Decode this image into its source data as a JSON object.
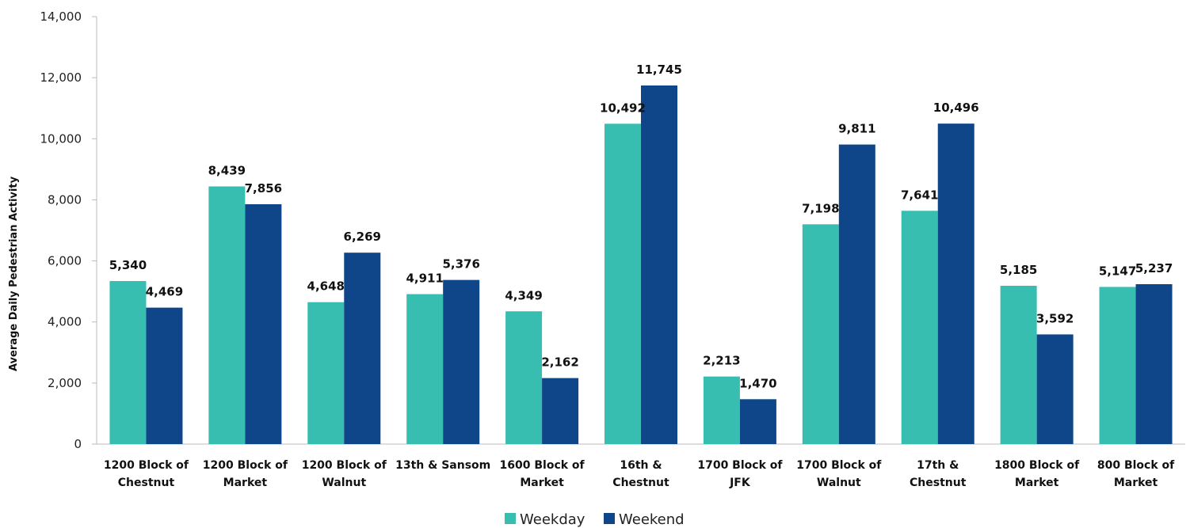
{
  "chart_data": {
    "type": "bar",
    "title": "",
    "xlabel": "",
    "ylabel": "Average Daily Pedestrian Activity",
    "ylim": [
      0,
      14000
    ],
    "yticks": [
      0,
      2000,
      4000,
      6000,
      8000,
      10000,
      12000,
      14000
    ],
    "ytick_labels": [
      "0",
      "2,000",
      "4,000",
      "6,000",
      "8,000",
      "10,000",
      "12,000",
      "14,000"
    ],
    "grid": false,
    "legend_position": "bottom",
    "categories": [
      [
        "1200 Block of",
        "Chestnut"
      ],
      [
        "1200 Block of",
        "Market"
      ],
      [
        "1200 Block of",
        "Walnut"
      ],
      [
        "13th & Sansom"
      ],
      [
        "1600 Block of",
        "Market"
      ],
      [
        "16th &",
        "Chestnut"
      ],
      [
        "1700 Block of",
        "JFK"
      ],
      [
        "1700 Block of",
        "Walnut"
      ],
      [
        "17th &",
        "Chestnut"
      ],
      [
        "1800 Block of",
        "Market"
      ],
      [
        "800 Block of",
        "Market"
      ]
    ],
    "series": [
      {
        "name": "Weekday",
        "color": "#38bdb1",
        "values": [
          5340,
          8439,
          4648,
          4911,
          4349,
          10492,
          2213,
          7198,
          7641,
          5185,
          5147
        ],
        "labels": [
          "5,340",
          "8,439",
          "4,648",
          "4,911",
          "4,349",
          "10,492",
          "2,213",
          "7,198",
          "7,641",
          "5,185",
          "5,147"
        ]
      },
      {
        "name": "Weekend",
        "color": "#0e4689",
        "values": [
          4469,
          7856,
          6269,
          5376,
          2162,
          11745,
          1470,
          9811,
          10496,
          3592,
          5237
        ],
        "labels": [
          "4,469",
          "7,856",
          "6,269",
          "5,376",
          "2,162",
          "11,745",
          "1,470",
          "9,811",
          "10,496",
          "3,592",
          "5,237"
        ]
      }
    ]
  }
}
